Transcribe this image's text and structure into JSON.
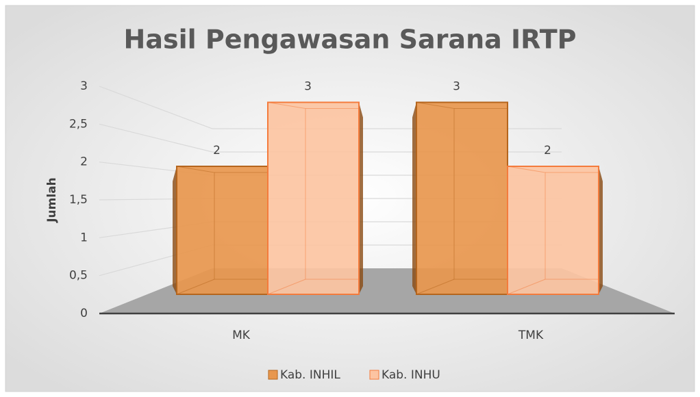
{
  "chart_data": {
    "type": "bar3d",
    "title": "Hasil Pengawasan Sarana IRTP",
    "y_label": "Jumlah",
    "categories": [
      "MK",
      "TMK"
    ],
    "series": [
      {
        "name": "Kab. INHIL",
        "color": "#e8974e",
        "values": [
          2,
          3
        ]
      },
      {
        "name": "Kab. INHU",
        "color": "#fcc4a2",
        "values": [
          3,
          2
        ]
      }
    ],
    "ylim": [
      0,
      3
    ],
    "yticks": [
      0,
      {
        "value": 0.5,
        "label": "0,5"
      },
      1,
      {
        "value": 1.5,
        "label": "1,5"
      },
      2,
      {
        "value": 2.5,
        "label": "2,5"
      },
      3
    ],
    "grid": true,
    "legend": "bottom"
  }
}
